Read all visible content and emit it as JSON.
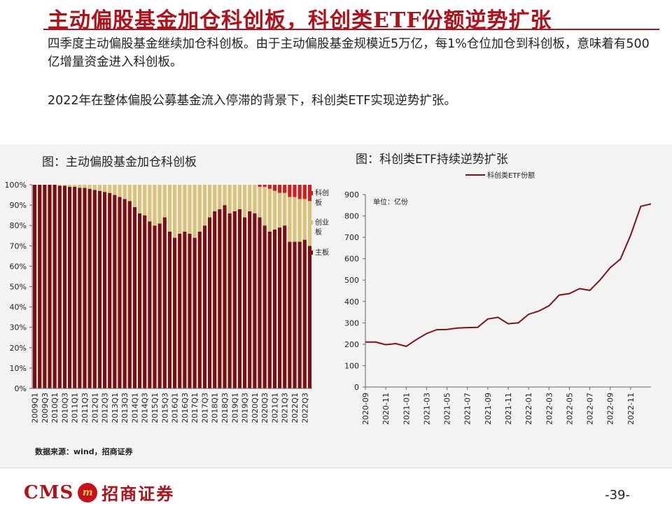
{
  "title": "主动偏股基金加仓科创板，科创类ETF份额逆势扩张",
  "paragraphs": [
    "四季度主动偏股基金继续加仓科创板。由于主动偏股基金规模近5万亿，每1%仓位加仓到科创板，意味着有500亿增量资金进入科创板。",
    "2022年在整体偏股公募基金流入停滞的背景下，科创类ETF实现逆势扩张。"
  ],
  "source_note": "数据来源：wind，招商证券",
  "footer": {
    "logo_text": "CMS",
    "logo_mark": "m",
    "logo_cn": "招商证券",
    "page": "-39-"
  },
  "colors": {
    "accent": "#b0121b",
    "main_board": "#7a0f12",
    "chinext": "#d9c27a",
    "star": "#cc1f1f",
    "line": "#7a1418"
  },
  "chart_data": [
    {
      "type": "bar",
      "stacked": true,
      "title": "图：主动偏股基金加仓科创板",
      "x": [
        "2009Q1",
        "2009Q2",
        "2009Q3",
        "2009Q4",
        "2010Q1",
        "2010Q2",
        "2010Q3",
        "2010Q4",
        "2011Q1",
        "2011Q2",
        "2011Q3",
        "2011Q4",
        "2012Q1",
        "2012Q2",
        "2012Q3",
        "2012Q4",
        "2013Q1",
        "2013Q2",
        "2013Q3",
        "2013Q4",
        "2014Q1",
        "2014Q2",
        "2014Q3",
        "2014Q4",
        "2015Q1",
        "2015Q2",
        "2015Q3",
        "2015Q4",
        "2016Q1",
        "2016Q2",
        "2016Q3",
        "2016Q4",
        "2017Q1",
        "2017Q2",
        "2017Q3",
        "2017Q4",
        "2018Q1",
        "2018Q2",
        "2018Q3",
        "2018Q4",
        "2019Q1",
        "2019Q2",
        "2019Q3",
        "2019Q4",
        "2020Q1",
        "2020Q2",
        "2020Q3",
        "2020Q4",
        "2021Q1",
        "2021Q2",
        "2021Q3",
        "2021Q4",
        "2022Q1",
        "2022Q2",
        "2022Q3",
        "2022Q4"
      ],
      "x_tick_labels": [
        "2009Q1",
        "2009Q3",
        "2010Q1",
        "2010Q3",
        "2011Q1",
        "2011Q3",
        "2012Q1",
        "2012Q3",
        "2013Q1",
        "2013Q3",
        "2014Q1",
        "2014Q3",
        "2015Q1",
        "2015Q3",
        "2016Q1",
        "2016Q3",
        "2017Q1",
        "2017Q3",
        "2018Q1",
        "2018Q3",
        "2019Q1",
        "2019Q3",
        "2020Q1",
        "2020Q3",
        "2021Q1",
        "2021Q3",
        "2022Q1",
        "2022Q3"
      ],
      "y_ticks": [
        "0%",
        "10%",
        "20%",
        "30%",
        "40%",
        "50%",
        "60%",
        "70%",
        "80%",
        "90%",
        "100%"
      ],
      "ylim": [
        0,
        100
      ],
      "series": [
        {
          "name": "主板",
          "values": [
            100,
            100,
            100,
            100,
            100,
            99.5,
            99.5,
            99,
            99,
            98.5,
            98.5,
            98,
            97.5,
            97,
            96.5,
            96,
            95,
            94,
            93,
            92,
            89,
            86,
            85,
            82,
            80,
            81,
            84,
            77,
            74,
            76,
            77,
            76,
            74,
            77,
            80,
            84,
            87,
            88,
            90,
            86,
            87,
            88,
            84,
            87,
            86,
            84,
            80,
            77,
            78,
            79,
            80,
            72,
            72,
            72,
            73,
            70
          ]
        },
        {
          "name": "创业板",
          "values": [
            0,
            0,
            0,
            0,
            0,
            0.5,
            0.5,
            1,
            1,
            1.5,
            1.5,
            2,
            2.5,
            3,
            3.5,
            4,
            5,
            6,
            7,
            8,
            11,
            14,
            15,
            18,
            20,
            19,
            16,
            23,
            26,
            24,
            23,
            24,
            26,
            23,
            20,
            16,
            13,
            12,
            10,
            14,
            13,
            12,
            16,
            13,
            14,
            15,
            19,
            21,
            19,
            17,
            16,
            22,
            22,
            21,
            20,
            22
          ]
        },
        {
          "name": "科创板",
          "values": [
            0,
            0,
            0,
            0,
            0,
            0,
            0,
            0,
            0,
            0,
            0,
            0,
            0,
            0,
            0,
            0,
            0,
            0,
            0,
            0,
            0,
            0,
            0,
            0,
            0,
            0,
            0,
            0,
            0,
            0,
            0,
            0,
            0,
            0,
            0,
            0,
            0,
            0,
            0,
            0,
            0,
            0,
            0,
            0,
            0,
            1,
            1,
            2,
            3,
            4,
            4,
            6,
            6,
            7,
            7,
            8
          ]
        }
      ]
    },
    {
      "type": "line",
      "title": "图：科创类ETF持续逆势扩张",
      "unit_note": "单位：亿份",
      "series_name": "科创类ETF份额",
      "x_tick_labels": [
        "2020-09",
        "2020-11",
        "2021-01",
        "2021-03",
        "2021-05",
        "2021-07",
        "2021-09",
        "2021-11",
        "2022-01",
        "2022-03",
        "2022-05",
        "2022-07",
        "2022-09",
        "2022-11"
      ],
      "y_ticks": [
        "0",
        "100",
        "200",
        "300",
        "400",
        "500",
        "600",
        "700",
        "800",
        "900"
      ],
      "ylim": [
        0,
        900
      ],
      "x": [
        "2020-09",
        "2020-10",
        "2020-11",
        "2020-12",
        "2021-01",
        "2021-02",
        "2021-03",
        "2021-04",
        "2021-05",
        "2021-06",
        "2021-07",
        "2021-08",
        "2021-09",
        "2021-10",
        "2021-11",
        "2021-12",
        "2022-01",
        "2022-02",
        "2022-03",
        "2022-04",
        "2022-05",
        "2022-06",
        "2022-07",
        "2022-08",
        "2022-09",
        "2022-10",
        "2022-11",
        "2022-12",
        "2023-01"
      ],
      "values": [
        210,
        210,
        198,
        203,
        190,
        222,
        250,
        268,
        269,
        276,
        278,
        279,
        318,
        326,
        296,
        300,
        340,
        355,
        380,
        430,
        437,
        460,
        452,
        500,
        558,
        598,
        710,
        845,
        856
      ]
    }
  ]
}
